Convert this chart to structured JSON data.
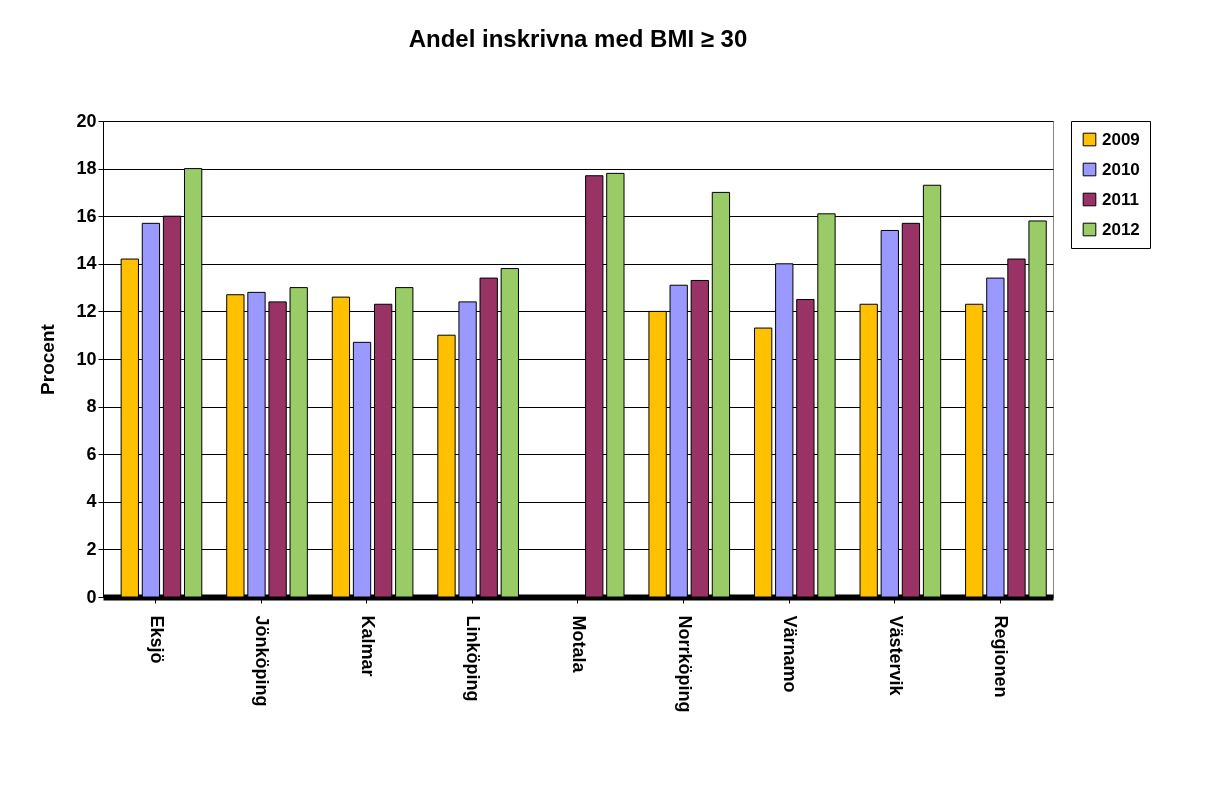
{
  "chart_data": {
    "type": "bar",
    "title": "Andel inskrivna med BMI ≥ 30",
    "ylabel": "Procent",
    "categories": [
      "Eksjö",
      "Jönköping",
      "Kalmar",
      "Linköping",
      "Motala",
      "Norrköping",
      "Värnamo",
      "Västervik",
      "Regionen"
    ],
    "series": [
      {
        "name": "2009",
        "color": "#ffc000",
        "values": [
          14.2,
          12.7,
          12.6,
          11.0,
          null,
          12.0,
          11.3,
          12.3,
          12.3
        ]
      },
      {
        "name": "2010",
        "color": "#9999ff",
        "values": [
          15.7,
          12.8,
          10.7,
          12.4,
          null,
          13.1,
          14.0,
          15.4,
          13.4
        ]
      },
      {
        "name": "2011",
        "color": "#993366",
        "values": [
          16.0,
          12.4,
          12.3,
          13.4,
          17.7,
          13.3,
          12.5,
          15.7,
          14.2
        ]
      },
      {
        "name": "2012",
        "color": "#99cc66",
        "values": [
          18.0,
          13.0,
          13.0,
          13.8,
          17.8,
          17.0,
          16.1,
          17.3,
          15.8
        ]
      }
    ],
    "ylim": [
      0,
      20
    ],
    "yticks": [
      0,
      2,
      4,
      6,
      8,
      10,
      12,
      14,
      16,
      18,
      20
    ],
    "grid": "y",
    "legend": "right"
  }
}
